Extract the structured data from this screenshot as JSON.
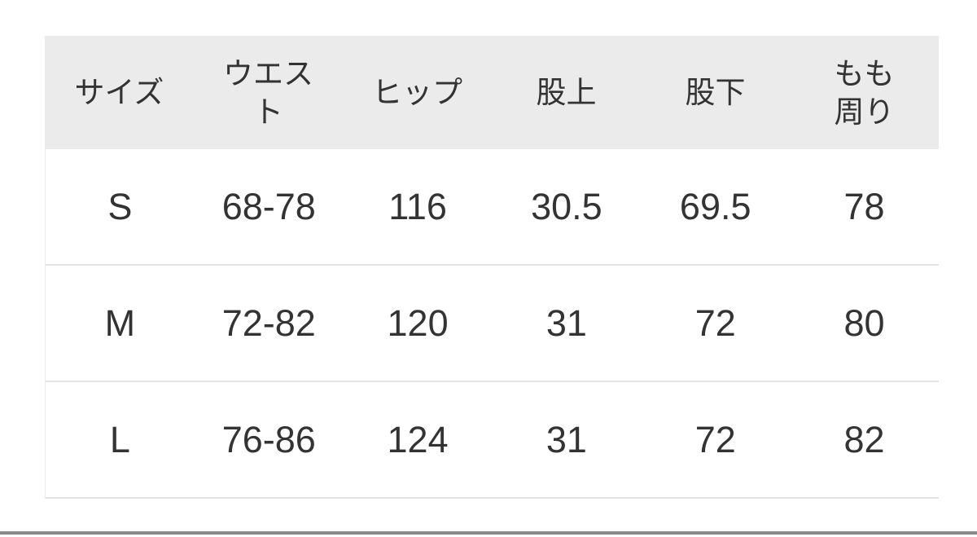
{
  "table": {
    "columns": [
      {
        "label": "サイズ"
      },
      {
        "label": "ウエス\nト"
      },
      {
        "label": "ヒップ"
      },
      {
        "label": "股上"
      },
      {
        "label": "股下"
      },
      {
        "label": "もも\n周り"
      }
    ],
    "rows": [
      {
        "size": "S",
        "waist": "68-78",
        "hip": "116",
        "rise": "30.5",
        "inseam": "69.5",
        "thigh": "78"
      },
      {
        "size": "M",
        "waist": "72-82",
        "hip": "120",
        "rise": "31",
        "inseam": "72",
        "thigh": "80"
      },
      {
        "size": "L",
        "waist": "76-86",
        "hip": "124",
        "rise": "31",
        "inseam": "72",
        "thigh": "82"
      }
    ]
  },
  "colors": {
    "header-bg": "#ebebeb",
    "text": "#333333",
    "row-border": "#e2e2e2",
    "table-edge": "#ececec",
    "divider": "#8a8a8a",
    "page-bg": "#ffffff"
  }
}
